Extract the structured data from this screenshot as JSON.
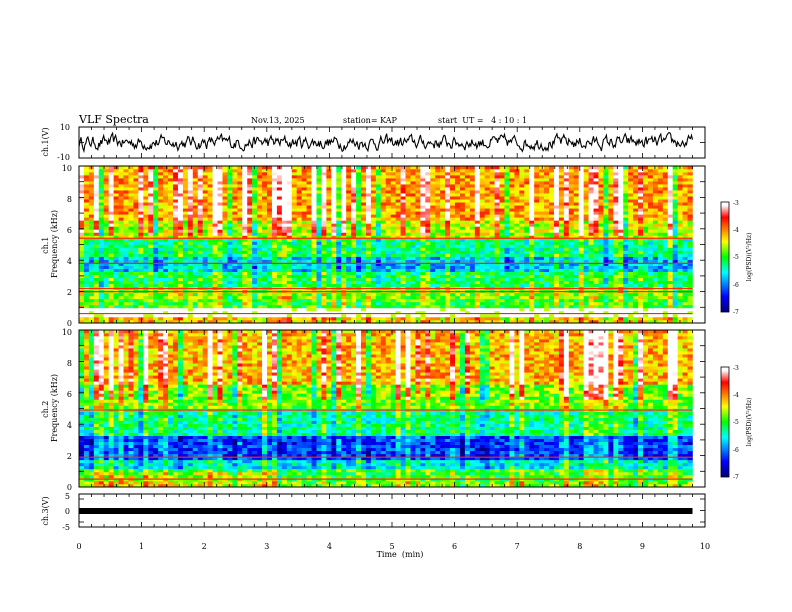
{
  "header": {
    "title": "VLF Spectra",
    "date": "Nov.13, 2025",
    "station": "station= KAP",
    "start": "start  UT =   4 : 10 : 1"
  },
  "colors": {
    "waveform": "#000000",
    "colormap": [
      "#ffffff",
      "#00007f",
      "#0000ff",
      "#00ffff",
      "#00ff00",
      "#ffff00",
      "#ff0000",
      "#7f0000"
    ]
  },
  "chart_data": [
    {
      "type": "line",
      "panel": "ch1-waveform",
      "ylabel": "ch.1(V)",
      "ylim": [
        -10,
        10
      ],
      "yticks": [
        "10",
        "-10"
      ],
      "xlim": [
        0,
        10
      ],
      "description_series": "noisy waveform around 0 V, amplitude about 3 V",
      "series": [
        {
          "name": "ch.1",
          "amplitude_v": 3.0,
          "mean_v": 0
        }
      ]
    },
    {
      "type": "heatmap",
      "panel": "ch1-spectrogram",
      "ylabel": "ch.1\nFrequency (kHz)",
      "ylabel_lines": [
        "ch.1",
        "Frequency (kHz)"
      ],
      "ylim": [
        0,
        10
      ],
      "yticks": [
        "0",
        "2",
        "4",
        "6",
        "8",
        "10"
      ],
      "xlim": [
        0,
        10
      ],
      "data_end_min": 9.8,
      "colorbar": {
        "label": "log(PSD)(V²/Hz)",
        "range": [
          -7,
          -3
        ],
        "ticks": [
          "-3",
          "-4",
          "-5",
          "-6",
          "-7"
        ]
      },
      "bands": [
        {
          "f_low": 0,
          "f_high": 0.35,
          "level": 0.65
        },
        {
          "f_low": 0.35,
          "f_high": 1.0,
          "level": 0.0
        },
        {
          "f_low": 1.0,
          "f_high": 1.6,
          "level": 0.5
        },
        {
          "f_low": 1.6,
          "f_high": 2.3,
          "level": 0.55
        },
        {
          "f_low": 2.3,
          "f_high": 3.3,
          "level": 0.45
        },
        {
          "f_low": 3.3,
          "f_high": 4.2,
          "level": 0.3
        },
        {
          "f_low": 4.2,
          "f_high": 5.3,
          "level": 0.42
        },
        {
          "f_low": 5.3,
          "f_high": 6.5,
          "level": 0.6
        },
        {
          "f_low": 6.5,
          "f_high": 10.0,
          "level": 0.72
        }
      ],
      "lines_khz": [
        0.6,
        2.0,
        2.2,
        3.8,
        5.4
      ]
    },
    {
      "type": "heatmap",
      "panel": "ch2-spectrogram",
      "ylabel": "ch.2\nFrequency (kHz)",
      "ylabel_lines": [
        "ch.2",
        "Frequency (kHz)"
      ],
      "ylim": [
        0,
        10
      ],
      "yticks": [
        "0",
        "2",
        "4",
        "6",
        "8",
        "10"
      ],
      "xlim": [
        0,
        10
      ],
      "data_end_min": 9.8,
      "colorbar": {
        "label": "log(PSD)(V²/Hz)",
        "range": [
          -7,
          -3
        ],
        "ticks": [
          "-3",
          "-4",
          "-5",
          "-6",
          "-7"
        ]
      },
      "bands": [
        {
          "f_low": 0,
          "f_high": 0.4,
          "level": 0.55
        },
        {
          "f_low": 0.4,
          "f_high": 1.2,
          "level": 0.5
        },
        {
          "f_low": 1.2,
          "f_high": 1.8,
          "level": 0.35
        },
        {
          "f_low": 1.8,
          "f_high": 3.3,
          "level": 0.18
        },
        {
          "f_low": 3.3,
          "f_high": 5.0,
          "level": 0.42
        },
        {
          "f_low": 5.0,
          "f_high": 6.5,
          "level": 0.55
        },
        {
          "f_low": 6.5,
          "f_high": 10.0,
          "level": 0.7
        }
      ],
      "lines_khz": [
        0.5,
        1.9,
        4.9
      ]
    },
    {
      "type": "line",
      "panel": "ch3-waveform",
      "ylabel": "ch.3(V)",
      "ylim": [
        -5,
        5
      ],
      "yticks": [
        "5",
        "0",
        "-5"
      ],
      "xlim": [
        0,
        10
      ],
      "xlabel": "Time  (min)",
      "xticks": [
        "0",
        "1",
        "2",
        "3",
        "4",
        "5",
        "6",
        "7",
        "8",
        "9",
        "10"
      ],
      "series": [
        {
          "name": "ch.3",
          "constant_v": 0
        }
      ]
    }
  ]
}
